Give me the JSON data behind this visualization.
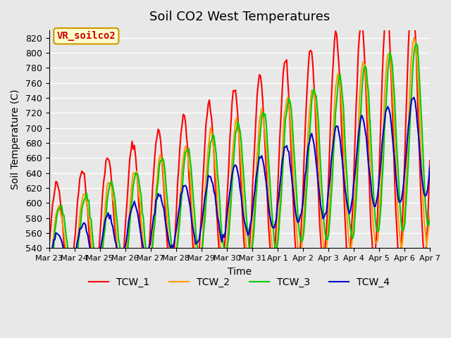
{
  "title": "Soil CO2 West Temperatures",
  "xlabel": "Time",
  "ylabel": "Soil Temperature (C)",
  "annotation": "VR_soilco2",
  "annotation_color": "#cc0000",
  "annotation_bg": "#ffffcc",
  "annotation_border": "#cc9900",
  "ylim": [
    540,
    830
  ],
  "yticks": [
    540,
    560,
    580,
    600,
    620,
    640,
    660,
    680,
    700,
    720,
    740,
    760,
    780,
    800,
    820
  ],
  "background_color": "#e8e8e8",
  "plot_bg": "#e8e8e8",
  "grid_color": "#ffffff",
  "series_colors": {
    "TCW_1": "#ff0000",
    "TCW_2": "#ff9900",
    "TCW_3": "#00cc00",
    "TCW_4": "#0000cc"
  },
  "x_labels": [
    "Mar 23",
    "Mar 24",
    "Mar 25",
    "Mar 26",
    "Mar 27",
    "Mar 28",
    "Mar 29",
    "Mar 30",
    "Mar 31",
    "Apr 1",
    "Apr 2",
    "Apr 3",
    "Apr 4",
    "Apr 5",
    "Apr 6",
    "Apr 7"
  ],
  "n_points": 336
}
